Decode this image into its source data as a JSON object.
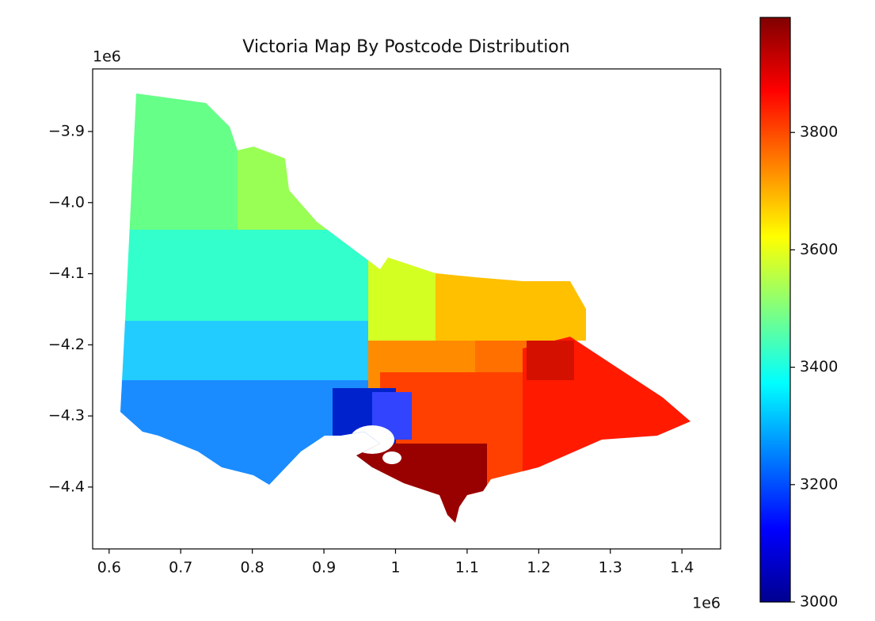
{
  "chart_data": {
    "type": "map",
    "title": "Victoria Map By Postcode Distribution",
    "x_offset": "1e6",
    "y_offset": "1e6",
    "xlim": [
      0.577,
      1.454
    ],
    "xticks": [
      0.6,
      0.7,
      0.8,
      0.9,
      1.0,
      1.1,
      1.2,
      1.3,
      1.4
    ],
    "ylim": [
      -4.487,
      -3.812
    ],
    "yticks": [
      {
        "value": -3.9,
        "label": "−3.9"
      },
      {
        "value": -4.0,
        "label": "−4.0"
      },
      {
        "value": -4.1,
        "label": "−4.1"
      },
      {
        "value": -4.2,
        "label": "−4.2"
      },
      {
        "value": -4.3,
        "label": "−4.3"
      },
      {
        "value": -4.4,
        "label": "−4.4"
      }
    ],
    "colorbar": {
      "colormap": "jet",
      "lim": [
        3000,
        3996
      ],
      "ticks": [
        3000,
        3200,
        3400,
        3600,
        3800
      ]
    }
  }
}
